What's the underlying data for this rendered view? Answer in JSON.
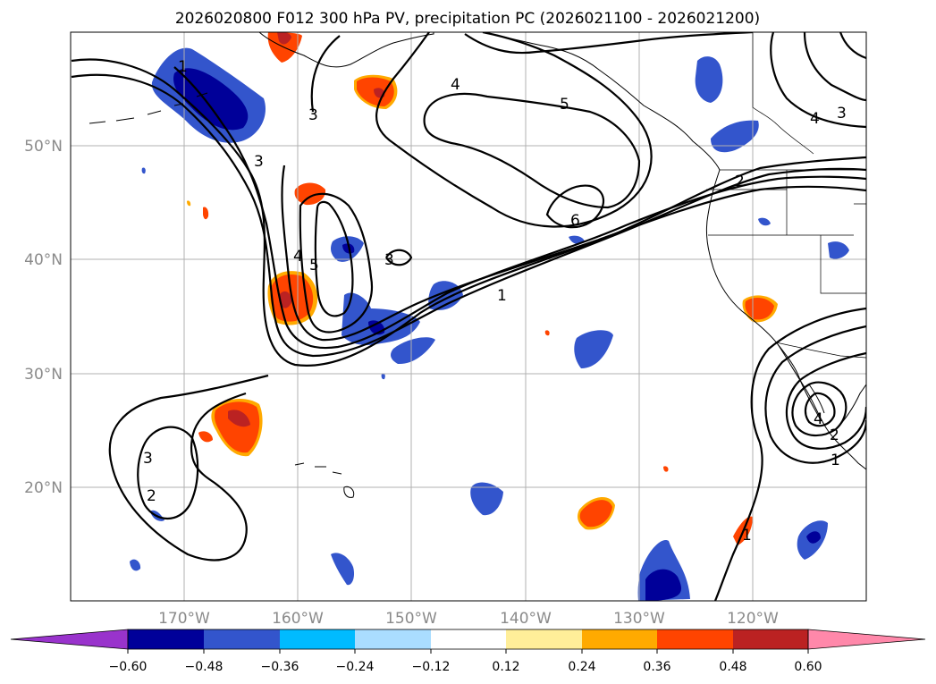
{
  "title": "2026020800 F012 300 hPa PV, precipitation PC (2026021100 - 2026021200)",
  "lat_labels": [
    "50°N",
    "40°N",
    "30°N",
    "20°N"
  ],
  "lon_labels": [
    "170°W",
    "160°W",
    "150°W",
    "140°W",
    "130°W",
    "120°W"
  ],
  "colorbar": {
    "tick_labels": [
      "−0.60",
      "−0.48",
      "−0.36",
      "−0.24",
      "−0.12",
      "0.12",
      "0.24",
      "0.36",
      "0.48",
      "0.60"
    ],
    "colors": [
      "#9933cc",
      "#000099",
      "#3355cc",
      "#00bbff",
      "#aaddff",
      "#ffffff",
      "#ffee99",
      "#ffaa00",
      "#ff4400",
      "#bb2222",
      "#ff88aa"
    ]
  },
  "pv_contour_labels": [
    "1",
    "2",
    "3",
    "3",
    "3",
    "4",
    "4",
    "5",
    "5",
    "6",
    "1",
    "2",
    "3",
    "4",
    "1",
    "2",
    "3",
    "4",
    "1"
  ],
  "map_extent": {
    "lon_min": -180,
    "lon_max": -110,
    "lat_min": 10,
    "lat_max": 60
  }
}
